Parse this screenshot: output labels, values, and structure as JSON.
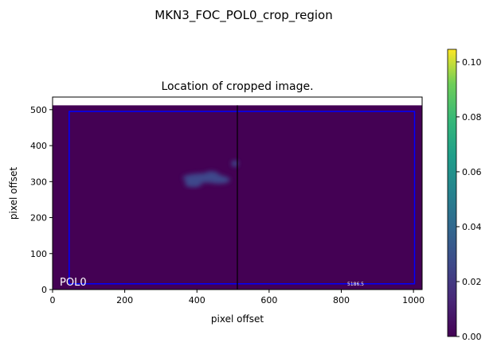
{
  "chart_data": {
    "type": "heatmap",
    "suptitle": "MKN3_FOC_POL0_crop_region",
    "title": "Location of cropped image.",
    "xlabel": "pixel offset",
    "ylabel": "pixel offset",
    "xlim": [
      0,
      1024
    ],
    "ylim": [
      0,
      535
    ],
    "image_extent": {
      "x": [
        0,
        1024
      ],
      "y": [
        0,
        512
      ]
    },
    "xticks": [
      0,
      200,
      400,
      600,
      800,
      1000
    ],
    "yticks": [
      0,
      100,
      200,
      300,
      400,
      500
    ],
    "crop_rectangle": {
      "x0": 46,
      "x1": 1003,
      "y0": 16,
      "y1": 495,
      "color": "#0000ff"
    },
    "vertical_line": {
      "x": 512,
      "color": "#000000"
    },
    "annotations": {
      "bottom_left": "POL0",
      "bottom_right": "5186.5"
    },
    "colorbar": {
      "colormap": "viridis",
      "range": [
        0,
        0.1046
      ],
      "ticks": [
        "0.00",
        "0.02",
        "0.04",
        "0.06",
        "0.08",
        "0.10"
      ],
      "tick_values": [
        0,
        0.02,
        0.04,
        0.06,
        0.08,
        0.1
      ]
    },
    "background_color": "#440154"
  }
}
